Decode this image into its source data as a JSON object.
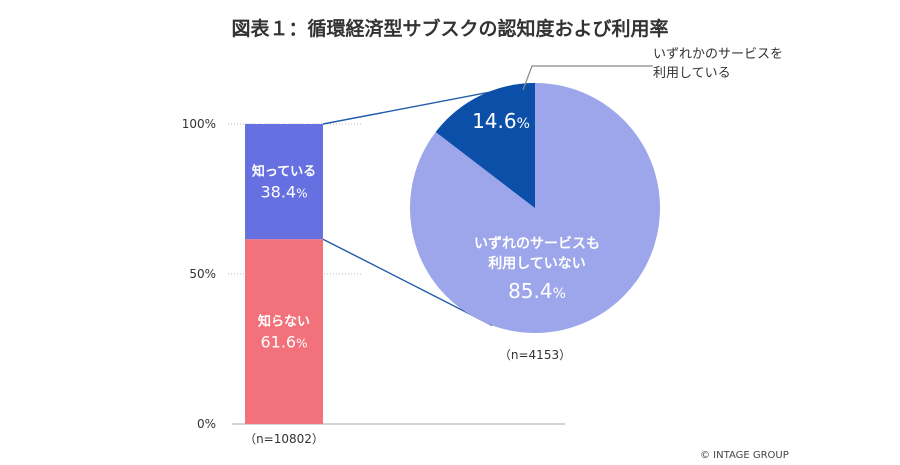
{
  "title": "図表１：循環経済型サブスクの認知度および利用率",
  "credit": "© INTAGE GROUP",
  "colors": {
    "know": "#6670E0",
    "dont_know": "#F2717B",
    "use": "#0B4FA8",
    "not_use": "#9DA6EA",
    "connector": "#1F5BAA",
    "grid": "#BBBBBB"
  },
  "chart_data": [
    {
      "type": "bar",
      "stacked": true,
      "yticks": [
        "0%",
        "50%",
        "100%"
      ],
      "ylim": [
        0,
        100
      ],
      "series": [
        {
          "name": "知らない",
          "value": 61.6,
          "label": "61.6",
          "unit": "%"
        },
        {
          "name": "知っている",
          "value": 38.4,
          "label": "38.4",
          "unit": "%"
        }
      ],
      "n_label": "（n=10802）"
    },
    {
      "type": "pie",
      "slices": [
        {
          "name": "いずれかのサービスを利用している",
          "name_lines": [
            "いずれかのサービスを",
            "利用している"
          ],
          "value": 14.6,
          "label": "14.6",
          "unit": "%"
        },
        {
          "name": "いずれのサービスも利用していない",
          "name_lines": [
            "いずれのサービスも",
            "利用していない"
          ],
          "value": 85.4,
          "label": "85.4",
          "unit": "%"
        }
      ],
      "n_label": "（n=4153）"
    }
  ]
}
